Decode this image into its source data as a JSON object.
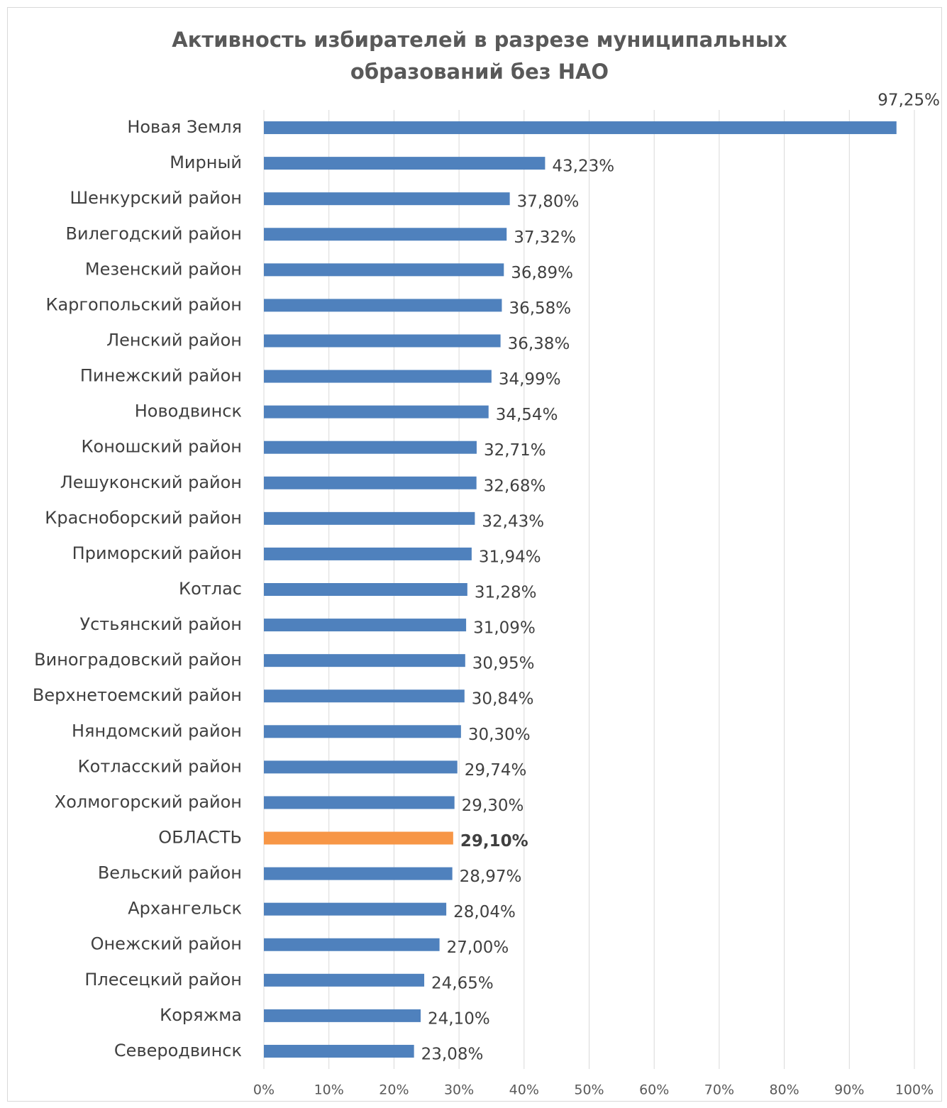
{
  "chart_data": {
    "type": "barh",
    "title": "Активность избирателей в разрезе муниципальных образований без НАО",
    "categories": [
      "Новая Земля",
      "Мирный",
      "Шенкурский район",
      "Вилегодский район",
      "Мезенский район",
      "Каргопольский район",
      "Ленский район",
      "Пинежский район",
      "Новодвинск",
      "Коношский район",
      "Лешуконский район",
      "Красноборский район",
      "Приморский район",
      "Котлас",
      "Устьянский район",
      "Виноградовский район",
      "Верхнетоемский район",
      "Няндомский район",
      "Котласский район",
      "Холмогорский район",
      "ОБЛАСТЬ",
      "Вельский район",
      "Архангельск",
      "Онежский район",
      "Плесецкий район",
      "Коряжма",
      "Северодвинск"
    ],
    "values": [
      97.25,
      43.23,
      37.8,
      37.32,
      36.89,
      36.58,
      36.38,
      34.99,
      34.54,
      32.71,
      32.68,
      32.43,
      31.94,
      31.28,
      31.09,
      30.95,
      30.84,
      30.3,
      29.74,
      29.3,
      29.1,
      28.97,
      28.04,
      27.0,
      24.65,
      24.1,
      23.08
    ],
    "value_labels": [
      "97,25%",
      "43,23%",
      "37,80%",
      "37,32%",
      "36,89%",
      "36,58%",
      "36,38%",
      "34,99%",
      "34,54%",
      "32,71%",
      "32,68%",
      "32,43%",
      "31,94%",
      "31,28%",
      "31,09%",
      "30,95%",
      "30,84%",
      "30,30%",
      "29,74%",
      "29,30%",
      "29,10%",
      "28,97%",
      "28,04%",
      "27,00%",
      "24,65%",
      "24,10%",
      "23,08%"
    ],
    "color": "#4f81bd",
    "colors": [
      "#4f81bd",
      "#4f81bd",
      "#4f81bd",
      "#4f81bd",
      "#4f81bd",
      "#4f81bd",
      "#4f81bd",
      "#4f81bd",
      "#4f81bd",
      "#4f81bd",
      "#4f81bd",
      "#4f81bd",
      "#4f81bd",
      "#4f81bd",
      "#4f81bd",
      "#4f81bd",
      "#4f81bd",
      "#4f81bd",
      "#4f81bd",
      "#4f81bd",
      "#f79646",
      "#4f81bd",
      "#4f81bd",
      "#4f81bd",
      "#4f81bd",
      "#4f81bd",
      "#4f81bd"
    ],
    "xlim": [
      0,
      100
    ],
    "xticks": [
      {
        "value": 0,
        "label": "0%"
      },
      {
        "value": 10,
        "label": "10%"
      },
      {
        "value": 20,
        "label": "20%"
      },
      {
        "value": 30,
        "label": "30%"
      },
      {
        "value": 40,
        "label": "40%"
      },
      {
        "value": 50,
        "label": "50%"
      },
      {
        "value": 60,
        "label": "60%"
      },
      {
        "value": 70,
        "label": "70%"
      },
      {
        "value": 80,
        "label": "80%"
      },
      {
        "value": 90,
        "label": "90%"
      },
      {
        "value": 100,
        "label": "100%"
      }
    ],
    "grid": true
  }
}
